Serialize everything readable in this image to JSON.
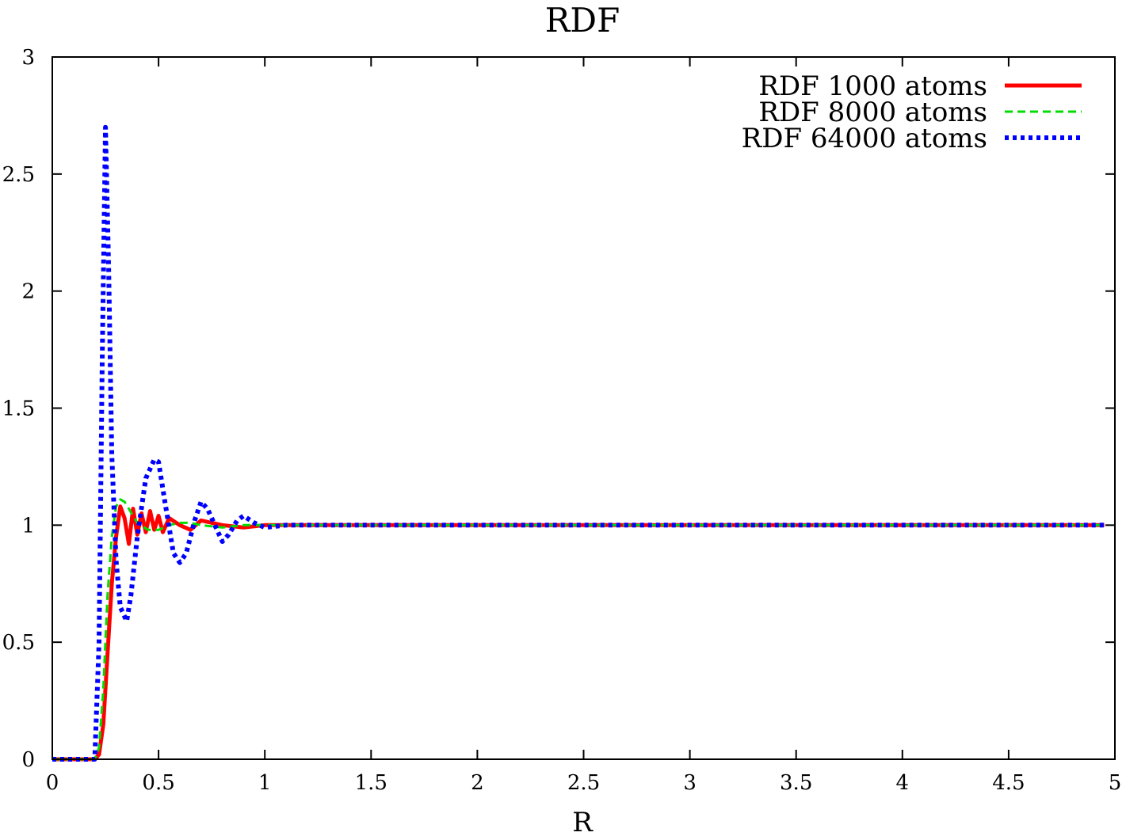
{
  "chart_data": {
    "type": "line",
    "title": "RDF",
    "xlabel": "R",
    "ylabel": "",
    "xlim": [
      0,
      5
    ],
    "ylim": [
      0,
      3
    ],
    "x_ticks": [
      "0",
      "0.5",
      "1",
      "1.5",
      "2",
      "2.5",
      "3",
      "3.5",
      "4",
      "4.5",
      "5"
    ],
    "y_ticks": [
      "0",
      "0.5",
      "1",
      "1.5",
      "2",
      "2.5",
      "3"
    ],
    "grid": false,
    "legend_position": "top-right",
    "series": [
      {
        "name": "RDF 1000 atoms",
        "color": "#ff0000",
        "style": "solid",
        "x": [
          0,
          0.2,
          0.22,
          0.24,
          0.26,
          0.28,
          0.3,
          0.32,
          0.34,
          0.36,
          0.38,
          0.4,
          0.42,
          0.44,
          0.46,
          0.48,
          0.5,
          0.52,
          0.55,
          0.6,
          0.65,
          0.7,
          0.8,
          0.9,
          1.0,
          1.2,
          1.5,
          2.0,
          2.5,
          3.0,
          3.5,
          4.0,
          4.5,
          4.95
        ],
        "values": [
          0,
          0,
          0.02,
          0.15,
          0.45,
          0.75,
          0.95,
          1.08,
          1.03,
          0.92,
          1.07,
          0.96,
          1.05,
          0.97,
          1.06,
          0.98,
          1.04,
          0.97,
          1.03,
          1.0,
          0.98,
          1.02,
          1.0,
          0.99,
          1.0,
          1.0,
          1.0,
          1.0,
          1.0,
          1.0,
          1.0,
          1.0,
          1.0,
          1.0
        ]
      },
      {
        "name": "RDF 8000 atoms",
        "color": "#00dd00",
        "style": "dashed",
        "x": [
          0,
          0.2,
          0.22,
          0.24,
          0.26,
          0.28,
          0.3,
          0.32,
          0.34,
          0.36,
          0.38,
          0.4,
          0.45,
          0.5,
          0.55,
          0.6,
          0.65,
          0.7,
          0.8,
          0.9,
          1.0,
          1.5,
          2.0,
          3.0,
          4.0,
          4.95
        ],
        "values": [
          0,
          0,
          0.05,
          0.3,
          0.7,
          0.95,
          1.08,
          1.11,
          1.1,
          1.07,
          1.04,
          1.01,
          0.98,
          0.98,
          1.0,
          1.01,
          1.01,
          1.0,
          0.99,
          1.0,
          1.0,
          1.0,
          1.0,
          1.0,
          1.0,
          1.0
        ]
      },
      {
        "name": "RDF 64000 atoms",
        "color": "#0000ff",
        "style": "dotted",
        "x": [
          0,
          0.2,
          0.22,
          0.235,
          0.25,
          0.265,
          0.28,
          0.3,
          0.32,
          0.35,
          0.37,
          0.4,
          0.44,
          0.48,
          0.5,
          0.53,
          0.57,
          0.6,
          0.63,
          0.67,
          0.7,
          0.73,
          0.77,
          0.8,
          0.83,
          0.87,
          0.9,
          0.95,
          1.0,
          1.1,
          1.2,
          1.3,
          1.5,
          2.0,
          3.0,
          4.0,
          4.95
        ],
        "values": [
          0,
          0,
          0.5,
          1.7,
          2.7,
          2.1,
          1.3,
          0.85,
          0.65,
          0.59,
          0.7,
          0.95,
          1.2,
          1.28,
          1.27,
          1.1,
          0.88,
          0.84,
          0.88,
          1.02,
          1.1,
          1.07,
          0.99,
          0.93,
          0.96,
          1.02,
          1.04,
          1.01,
          0.99,
          1.0,
          1.0,
          1.0,
          1.0,
          1.0,
          1.0,
          1.0,
          1.0
        ]
      }
    ]
  }
}
